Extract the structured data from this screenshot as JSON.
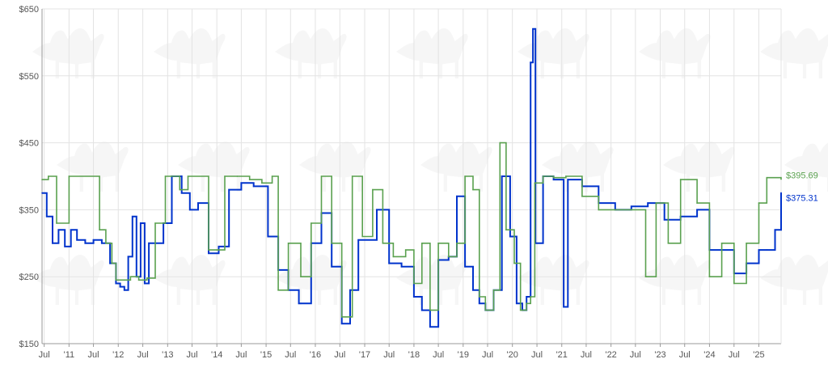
{
  "chart_data": {
    "type": "line",
    "title": "",
    "xlabel": "",
    "ylabel": "",
    "ylim": [
      150,
      650
    ],
    "y_ticks": [
      {
        "value": 150,
        "label": "$150"
      },
      {
        "value": 250,
        "label": "$250"
      },
      {
        "value": 350,
        "label": "$350"
      },
      {
        "value": 450,
        "label": "$450"
      },
      {
        "value": 550,
        "label": "$550"
      },
      {
        "value": 650,
        "label": "$650"
      }
    ],
    "x_range": [
      "2010-06-15",
      "2025-06-15"
    ],
    "x_ticks": [
      {
        "value": "2010-07-01",
        "label": "Jul"
      },
      {
        "value": "2011-01-01",
        "label": "'11"
      },
      {
        "value": "2011-07-01",
        "label": "Jul"
      },
      {
        "value": "2012-01-01",
        "label": "'12"
      },
      {
        "value": "2012-07-01",
        "label": "Jul"
      },
      {
        "value": "2013-01-01",
        "label": "'13"
      },
      {
        "value": "2013-07-01",
        "label": "Jul"
      },
      {
        "value": "2014-01-01",
        "label": "'14"
      },
      {
        "value": "2014-07-01",
        "label": "Jul"
      },
      {
        "value": "2015-01-01",
        "label": "'15"
      },
      {
        "value": "2015-07-01",
        "label": "Jul"
      },
      {
        "value": "2016-01-01",
        "label": "'16"
      },
      {
        "value": "2016-07-01",
        "label": "Jul"
      },
      {
        "value": "2017-01-01",
        "label": "'17"
      },
      {
        "value": "2017-07-01",
        "label": "Jul"
      },
      {
        "value": "2018-01-01",
        "label": "'18"
      },
      {
        "value": "2018-07-01",
        "label": "Jul"
      },
      {
        "value": "2019-01-01",
        "label": "'19"
      },
      {
        "value": "2019-07-01",
        "label": "Jul"
      },
      {
        "value": "2020-01-01",
        "label": "'20"
      },
      {
        "value": "2020-07-01",
        "label": "Jul"
      },
      {
        "value": "2021-01-01",
        "label": "'21"
      },
      {
        "value": "2021-07-01",
        "label": "Jul"
      },
      {
        "value": "2022-01-01",
        "label": "'22"
      },
      {
        "value": "2022-07-01",
        "label": "Jul"
      },
      {
        "value": "2023-01-01",
        "label": "'23"
      },
      {
        "value": "2023-07-01",
        "label": "Jul"
      },
      {
        "value": "2024-01-01",
        "label": "'24"
      },
      {
        "value": "2024-07-01",
        "label": "Jul"
      },
      {
        "value": "2025-01-01",
        "label": "'25"
      }
    ],
    "grid": true,
    "legend": "none",
    "end_labels": [
      {
        "series_index": 1,
        "label": "$395.69"
      },
      {
        "series_index": 0,
        "label": "$375.31"
      }
    ],
    "series": [
      {
        "color": "#0033cc",
        "style": "stepped",
        "points": [
          [
            "2010-06-15",
            375
          ],
          [
            "2010-07-20",
            340
          ],
          [
            "2010-09-01",
            300
          ],
          [
            "2010-10-15",
            320
          ],
          [
            "2010-12-01",
            295
          ],
          [
            "2011-01-15",
            320
          ],
          [
            "2011-03-01",
            305
          ],
          [
            "2011-05-01",
            300
          ],
          [
            "2011-07-01",
            305
          ],
          [
            "2011-09-01",
            300
          ],
          [
            "2011-11-01",
            270
          ],
          [
            "2011-12-15",
            240
          ],
          [
            "2012-01-15",
            235
          ],
          [
            "2012-02-15",
            230
          ],
          [
            "2012-03-15",
            280
          ],
          [
            "2012-04-15",
            340
          ],
          [
            "2012-05-15",
            250
          ],
          [
            "2012-06-15",
            330
          ],
          [
            "2012-07-15",
            240
          ],
          [
            "2012-08-15",
            300
          ],
          [
            "2012-10-01",
            300
          ],
          [
            "2012-12-01",
            330
          ],
          [
            "2013-02-01",
            400
          ],
          [
            "2013-04-15",
            375
          ],
          [
            "2013-06-15",
            350
          ],
          [
            "2013-08-15",
            360
          ],
          [
            "2013-11-01",
            285
          ],
          [
            "2014-01-15",
            295
          ],
          [
            "2014-04-01",
            380
          ],
          [
            "2014-07-01",
            390
          ],
          [
            "2014-10-01",
            385
          ],
          [
            "2015-01-15",
            310
          ],
          [
            "2015-04-01",
            260
          ],
          [
            "2015-06-15",
            230
          ],
          [
            "2015-09-01",
            210
          ],
          [
            "2015-12-01",
            300
          ],
          [
            "2016-02-15",
            345
          ],
          [
            "2016-05-01",
            265
          ],
          [
            "2016-07-15",
            180
          ],
          [
            "2016-09-15",
            230
          ],
          [
            "2016-11-15",
            305
          ],
          [
            "2017-01-15",
            305
          ],
          [
            "2017-04-01",
            350
          ],
          [
            "2017-07-01",
            270
          ],
          [
            "2017-10-01",
            265
          ],
          [
            "2018-01-01",
            220
          ],
          [
            "2018-03-01",
            200
          ],
          [
            "2018-05-01",
            175
          ],
          [
            "2018-07-01",
            275
          ],
          [
            "2018-09-15",
            280
          ],
          [
            "2018-11-15",
            370
          ],
          [
            "2019-01-15",
            265
          ],
          [
            "2019-03-15",
            230
          ],
          [
            "2019-05-01",
            210
          ],
          [
            "2019-06-15",
            200
          ],
          [
            "2019-08-15",
            230
          ],
          [
            "2019-10-15",
            400
          ],
          [
            "2019-12-15",
            310
          ],
          [
            "2020-02-01",
            210
          ],
          [
            "2020-03-15",
            200
          ],
          [
            "2020-04-15",
            220
          ],
          [
            "2020-05-15",
            570
          ],
          [
            "2020-06-01",
            620
          ],
          [
            "2020-06-20",
            300
          ],
          [
            "2020-08-15",
            400
          ],
          [
            "2020-11-01",
            395
          ],
          [
            "2021-01-15",
            205
          ],
          [
            "2021-02-15",
            395
          ],
          [
            "2021-06-01",
            385
          ],
          [
            "2021-10-01",
            360
          ],
          [
            "2022-02-01",
            350
          ],
          [
            "2022-06-01",
            355
          ],
          [
            "2022-10-01",
            360
          ],
          [
            "2023-02-01",
            335
          ],
          [
            "2023-06-01",
            340
          ],
          [
            "2023-10-01",
            350
          ],
          [
            "2024-01-01",
            290
          ],
          [
            "2024-04-01",
            290
          ],
          [
            "2024-07-01",
            255
          ],
          [
            "2024-10-01",
            270
          ],
          [
            "2025-01-01",
            290
          ],
          [
            "2025-03-01",
            290
          ],
          [
            "2025-05-01",
            320
          ],
          [
            "2025-06-15",
            375.31
          ]
        ]
      },
      {
        "color": "#5aa14f",
        "style": "stepped",
        "points": [
          [
            "2010-06-15",
            395
          ],
          [
            "2010-08-01",
            400
          ],
          [
            "2010-10-01",
            330
          ],
          [
            "2011-01-01",
            400
          ],
          [
            "2011-08-15",
            320
          ],
          [
            "2011-10-01",
            300
          ],
          [
            "2011-11-15",
            270
          ],
          [
            "2011-12-15",
            245
          ],
          [
            "2012-02-15",
            245
          ],
          [
            "2012-04-01",
            250
          ],
          [
            "2012-06-01",
            245
          ],
          [
            "2012-08-01",
            248
          ],
          [
            "2012-10-01",
            330
          ],
          [
            "2012-12-15",
            400
          ],
          [
            "2013-04-01",
            380
          ],
          [
            "2013-06-01",
            400
          ],
          [
            "2013-11-01",
            290
          ],
          [
            "2014-01-01",
            290
          ],
          [
            "2014-03-01",
            400
          ],
          [
            "2014-06-01",
            400
          ],
          [
            "2014-09-01",
            395
          ],
          [
            "2014-12-01",
            390
          ],
          [
            "2015-02-15",
            400
          ],
          [
            "2015-04-01",
            230
          ],
          [
            "2015-06-15",
            300
          ],
          [
            "2015-09-15",
            250
          ],
          [
            "2015-12-01",
            330
          ],
          [
            "2016-02-15",
            400
          ],
          [
            "2016-05-01",
            300
          ],
          [
            "2016-07-15",
            190
          ],
          [
            "2016-10-01",
            400
          ],
          [
            "2016-12-15",
            310
          ],
          [
            "2017-03-01",
            380
          ],
          [
            "2017-05-15",
            300
          ],
          [
            "2017-08-01",
            280
          ],
          [
            "2017-11-01",
            290
          ],
          [
            "2018-01-01",
            240
          ],
          [
            "2018-03-01",
            300
          ],
          [
            "2018-05-01",
            200
          ],
          [
            "2018-07-01",
            300
          ],
          [
            "2018-09-15",
            280
          ],
          [
            "2018-11-15",
            300
          ],
          [
            "2019-01-15",
            400
          ],
          [
            "2019-03-15",
            380
          ],
          [
            "2019-05-01",
            220
          ],
          [
            "2019-06-15",
            200
          ],
          [
            "2019-08-15",
            230
          ],
          [
            "2019-10-01",
            450
          ],
          [
            "2019-11-15",
            320
          ],
          [
            "2020-01-15",
            270
          ],
          [
            "2020-03-01",
            200
          ],
          [
            "2020-04-15",
            210
          ],
          [
            "2020-05-15",
            220
          ],
          [
            "2020-06-15",
            390
          ],
          [
            "2020-08-15",
            400
          ],
          [
            "2020-11-01",
            398
          ],
          [
            "2021-02-01",
            400
          ],
          [
            "2021-06-01",
            370
          ],
          [
            "2021-10-01",
            350
          ],
          [
            "2022-02-01",
            350
          ],
          [
            "2022-06-01",
            350
          ],
          [
            "2022-09-15",
            250
          ],
          [
            "2022-12-01",
            360
          ],
          [
            "2023-03-01",
            300
          ],
          [
            "2023-06-01",
            395
          ],
          [
            "2023-10-01",
            360
          ],
          [
            "2024-01-01",
            250
          ],
          [
            "2024-04-01",
            300
          ],
          [
            "2024-07-01",
            240
          ],
          [
            "2024-10-01",
            300
          ],
          [
            "2025-01-01",
            360
          ],
          [
            "2025-03-01",
            398
          ],
          [
            "2025-06-15",
            395.69
          ]
        ]
      }
    ]
  }
}
